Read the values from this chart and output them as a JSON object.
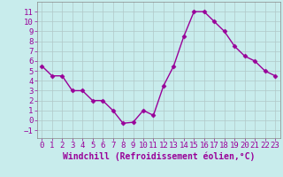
{
  "x": [
    0,
    1,
    2,
    3,
    4,
    5,
    6,
    7,
    8,
    9,
    10,
    11,
    12,
    13,
    14,
    15,
    16,
    17,
    18,
    19,
    20,
    21,
    22,
    23
  ],
  "y": [
    5.5,
    4.5,
    4.5,
    3.0,
    3.0,
    2.0,
    2.0,
    1.0,
    -0.3,
    -0.2,
    1.0,
    0.5,
    3.5,
    5.5,
    8.5,
    11.0,
    11.0,
    10.0,
    9.0,
    7.5,
    6.5,
    6.0,
    5.0,
    4.5
  ],
  "line_color": "#990099",
  "marker": "D",
  "marker_size": 2.5,
  "bg_color": "#c8ecec",
  "grid_color": "#b0c8c8",
  "xlabel": "Windchill (Refroidissement éolien,°C)",
  "xlim": [
    -0.5,
    23.5
  ],
  "ylim": [
    -1.8,
    12.0
  ],
  "yticks": [
    -1,
    0,
    1,
    2,
    3,
    4,
    5,
    6,
    7,
    8,
    9,
    10,
    11
  ],
  "xticks": [
    0,
    1,
    2,
    3,
    4,
    5,
    6,
    7,
    8,
    9,
    10,
    11,
    12,
    13,
    14,
    15,
    16,
    17,
    18,
    19,
    20,
    21,
    22,
    23
  ],
  "tick_label_size": 6.5,
  "xlabel_size": 7,
  "line_width": 1.0,
  "text_color": "#990099",
  "spine_color": "#888888"
}
